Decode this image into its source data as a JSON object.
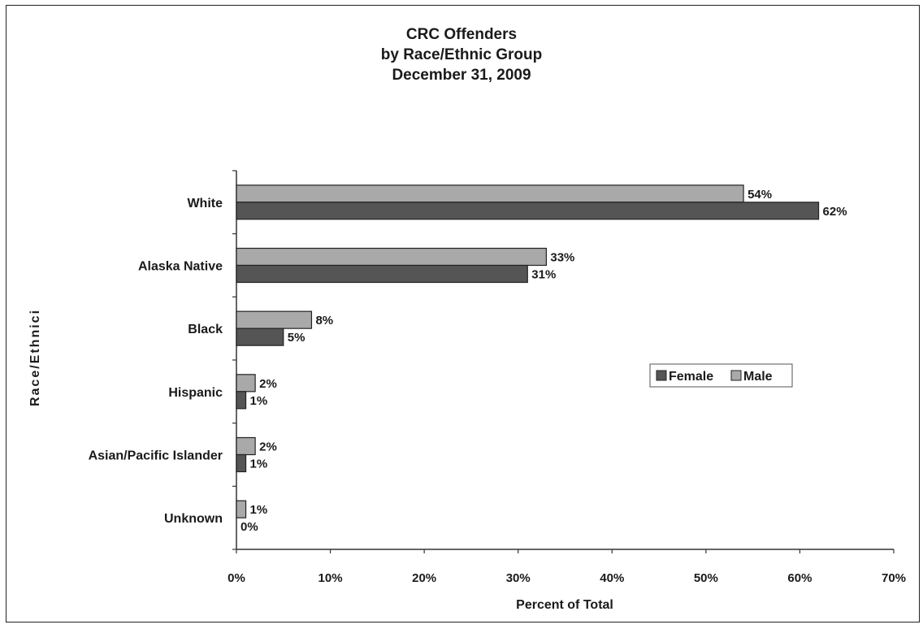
{
  "chart_data": {
    "type": "bar",
    "orientation": "horizontal",
    "title": [
      "CRC Offenders",
      "by Race/Ethnic Group",
      "December 31, 2009"
    ],
    "xlabel": "Percent of Total",
    "ylabel": "Race/Ethnici",
    "categories": [
      "White",
      "Alaska Native",
      "Black",
      "Hispanic",
      "Asian/Pacific Islander",
      "Unknown"
    ],
    "series": [
      {
        "name": "Male",
        "values": [
          54,
          33,
          8,
          2,
          2,
          1
        ],
        "labels": [
          "54%",
          "33%",
          "8%",
          "2%",
          "2%",
          "1%"
        ],
        "color": "#a9a9a9"
      },
      {
        "name": "Female",
        "values": [
          62,
          31,
          5,
          1,
          1,
          0
        ],
        "labels": [
          "62%",
          "31%",
          "5%",
          "1%",
          "1%",
          "0%"
        ],
        "color": "#555555"
      }
    ],
    "xlim": [
      0,
      70
    ],
    "xticks": [
      0,
      10,
      20,
      30,
      40,
      50,
      60,
      70
    ],
    "xtick_labels": [
      "0%",
      "10%",
      "20%",
      "30%",
      "40%",
      "50%",
      "60%",
      "70%"
    ],
    "legend": {
      "entries": [
        "Female",
        "Male"
      ],
      "placement": "right"
    },
    "grid": false
  }
}
